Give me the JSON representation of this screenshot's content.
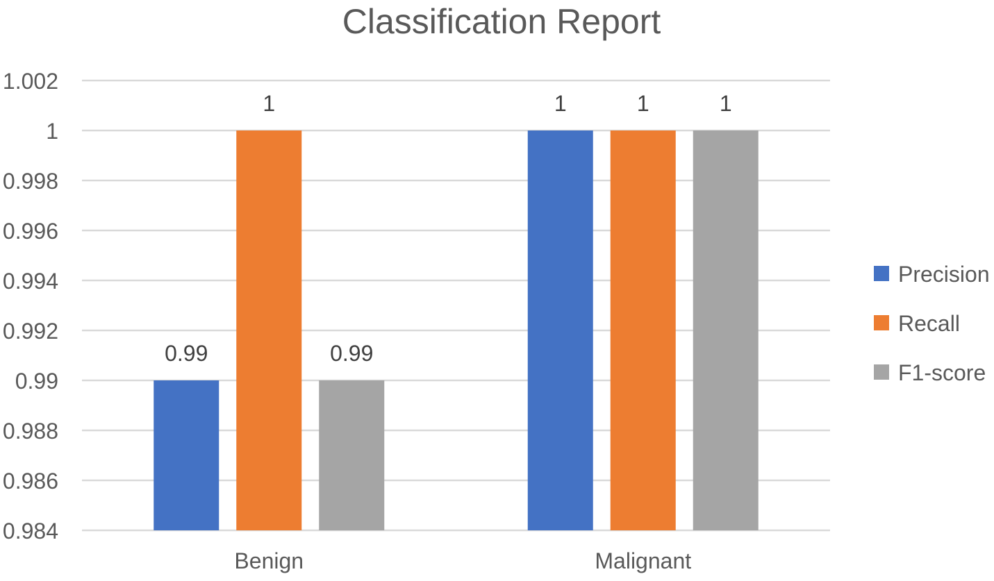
{
  "chart_data": {
    "type": "bar",
    "title": "Classification Report",
    "xlabel": "",
    "ylabel": "",
    "categories": [
      "Benign",
      "Malignant"
    ],
    "series": [
      {
        "name": "Precision",
        "values": [
          0.99,
          1
        ],
        "labels": [
          "0.99",
          "1"
        ],
        "color": "#4472C4"
      },
      {
        "name": "Recall",
        "values": [
          1,
          1
        ],
        "labels": [
          "1",
          "1"
        ],
        "color": "#ED7D31"
      },
      {
        "name": "F1-score",
        "values": [
          0.99,
          1
        ],
        "labels": [
          "0.99",
          "1"
        ],
        "color": "#A5A5A5"
      }
    ],
    "ylim": [
      0.984,
      1.002
    ],
    "yticks": [
      "0.984",
      "0.986",
      "0.988",
      "0.99",
      "0.992",
      "0.994",
      "0.996",
      "0.998",
      "1",
      "1.002"
    ],
    "grid": true,
    "legend_position": "right",
    "colors": {
      "grid": "#D9D9D9",
      "text": "#595959",
      "label_text": "#404040"
    }
  }
}
